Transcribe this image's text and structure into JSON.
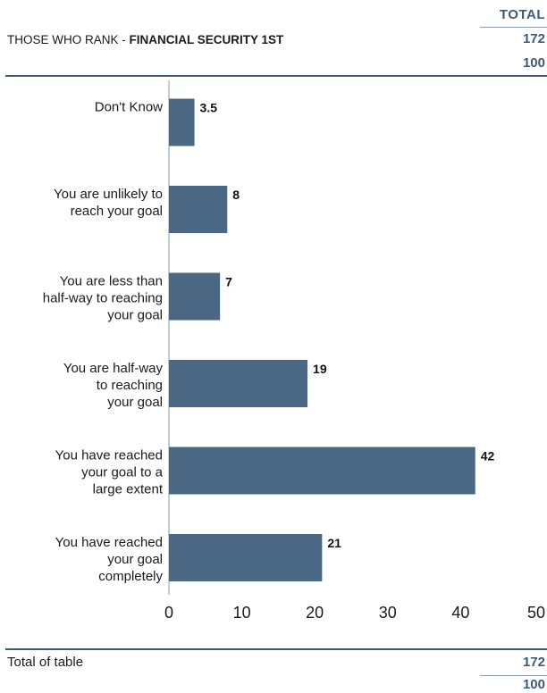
{
  "header": {
    "column_label": "TOTAL",
    "title_prefix": "THOSE WHO RANK - ",
    "title_bold": "FINANCIAL SECURITY 1ST",
    "base_n": "172",
    "base_pct": "100"
  },
  "footer": {
    "label": "Total of table",
    "n": "172",
    "pct": "100"
  },
  "chart_data": {
    "type": "bar",
    "orientation": "horizontal",
    "categories": [
      [
        "Don't Know"
      ],
      [
        "You are unlikely to",
        "reach your goal"
      ],
      [
        "You are less than",
        "half-way to reaching",
        "your goal"
      ],
      [
        "You are half-way",
        "to reaching",
        "your goal"
      ],
      [
        "You have reached",
        "your goal to a",
        "large extent"
      ],
      [
        "You have reached",
        "your goal",
        "completely"
      ]
    ],
    "values": [
      3.5,
      8,
      7,
      19,
      42,
      21
    ],
    "value_labels": [
      "3.5",
      "8",
      "7",
      "19",
      "42",
      "21"
    ],
    "xlim": [
      0,
      50
    ],
    "ticks": [
      0,
      10,
      20,
      30,
      40,
      50
    ],
    "grid": false,
    "bar_color": "#4a6783"
  }
}
